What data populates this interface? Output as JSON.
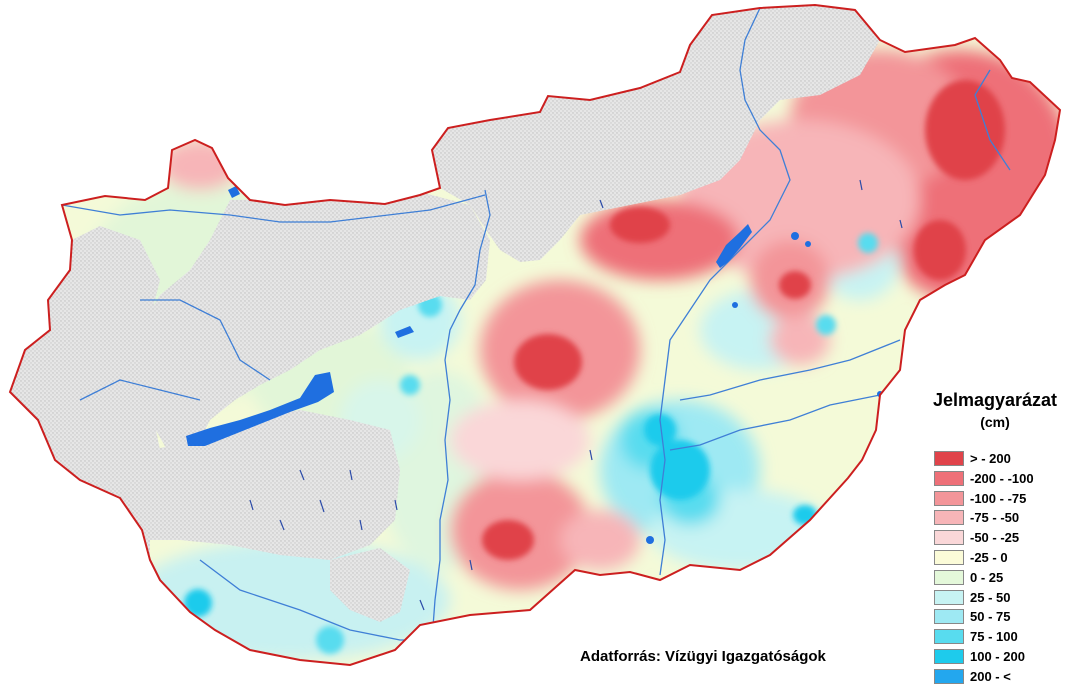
{
  "legend": {
    "title": "Jelmagyarázat",
    "unit": "(cm)",
    "items": [
      {
        "label": "> - 200",
        "color": "#e0434a"
      },
      {
        "label": "-200 - -100",
        "color": "#ee7078"
      },
      {
        "label": "-100 - -75",
        "color": "#f39599"
      },
      {
        "label": "-75 - -50",
        "color": "#f7b5b8"
      },
      {
        "label": "-50 - -25",
        "color": "#fad7d8"
      },
      {
        "label": "-25 - 0",
        "color": "#fbfbd8"
      },
      {
        "label": "0 - 25",
        "color": "#e4f8da"
      },
      {
        "label": "25 - 50",
        "color": "#c7f3f3"
      },
      {
        "label": "50 - 75",
        "color": "#9ee9f3"
      },
      {
        "label": "75 - 100",
        "color": "#58dcef"
      },
      {
        "label": "100 - 200",
        "color": "#1ecbec"
      },
      {
        "label": "200 - <",
        "color": "#23a7ee"
      }
    ]
  },
  "source": "Adatforrás: Vízügyi Igazgatóságok",
  "colors": {
    "border": "#cc1f1f",
    "nodata": "#dcdcdc",
    "rivers": "#3f7fd6",
    "lakes": "#1f6fe0"
  }
}
